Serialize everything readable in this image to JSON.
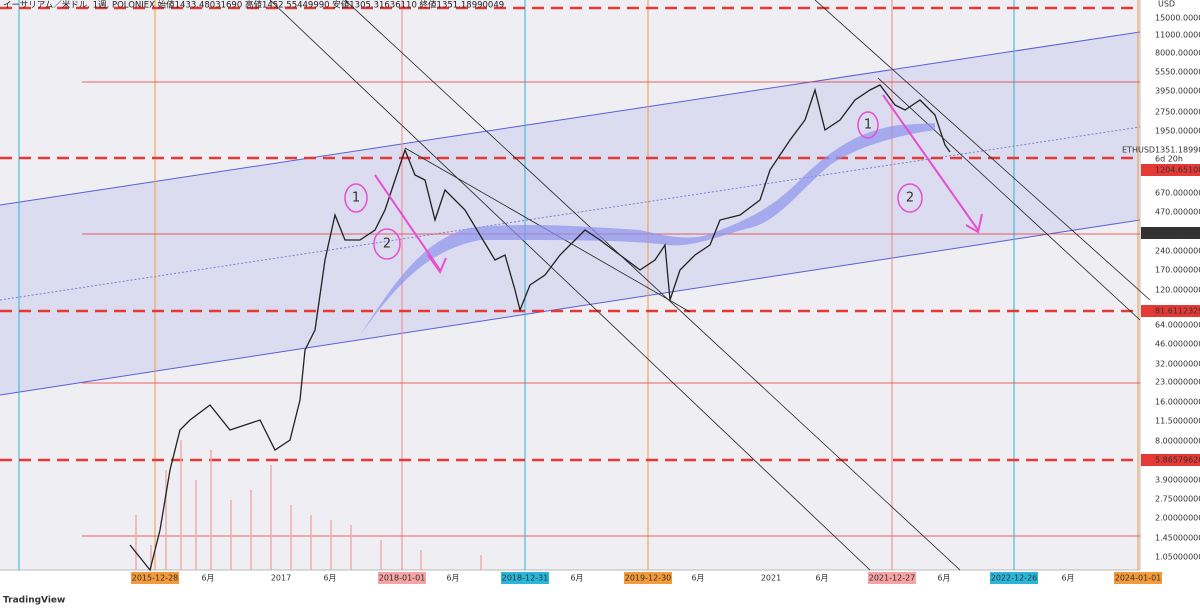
{
  "header": {
    "title": "イーサリアム／米ドル, 1週, POLONIEX  始値1433.48031690  高値1452.55449990  安値1305.31636110  終値1351.18990049"
  },
  "y_axis": {
    "currency": "USD",
    "labels": [
      "15000.00000000",
      "11000.00000000",
      "8000.00000000",
      "5550.00000000",
      "3950.00000000",
      "2750.00000000",
      "1950.00000000",
      "670.00000000",
      "470.00000000",
      "240.00000000",
      "170.00000000",
      "120.00000000",
      "64.00000000",
      "46.00000000",
      "32.00000000",
      "23.00000000",
      "16.00000000",
      "11.50000000",
      "8.00000000",
      "3.90000000",
      "2.75000000",
      "2.00000000",
      "1.45000000",
      "1.05000000"
    ]
  },
  "price_tags": [
    {
      "label": "1351.18990049",
      "symbol": "ETHUSD",
      "countdown": "6d 20h"
    },
    {
      "label": "1204.65108585"
    },
    {
      "label": "318.73252450"
    },
    {
      "label": "81.61123294"
    },
    {
      "label": "5.86579620"
    }
  ],
  "x_axis": {
    "labels": [
      "2015-12-28",
      "6月",
      "2017",
      "6月",
      "2018-01-01",
      "6月",
      "2018-12-31",
      "6月",
      "2019-12-30",
      "6月",
      "2021",
      "6月",
      "2021-12-27",
      "6月",
      "2022-12-26",
      "6月",
      "2024-01-01"
    ]
  },
  "annotations": [
    "1",
    "2",
    "1",
    "2"
  ],
  "footer": {
    "logo": "TradingView"
  }
}
